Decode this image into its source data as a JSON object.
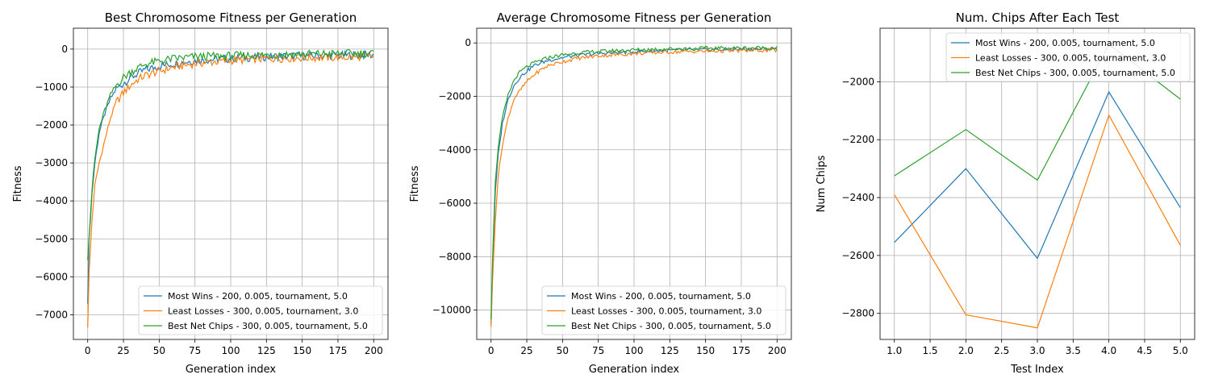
{
  "colors": {
    "blue": "#1f77b4",
    "orange": "#ff7f0e",
    "green": "#2ca02c",
    "grid": "#b0b0b0"
  },
  "chart_data": [
    {
      "type": "line",
      "title": "Best Chromosome Fitness per Generation",
      "xlabel": "Generation index",
      "ylabel": "Fitness",
      "xlim": [
        -10,
        210
      ],
      "ylim": [
        -7650,
        550
      ],
      "xticks": [
        0,
        25,
        50,
        75,
        100,
        125,
        150,
        175,
        200
      ],
      "yticks": [
        0,
        -1000,
        -2000,
        -3000,
        -4000,
        -5000,
        -6000,
        -7000
      ],
      "grid": true,
      "legend_position": "lower-right",
      "series": [
        {
          "name": "Most Wins - 200, 0.005, tournament, 5.0",
          "color": "#1f77b4",
          "points": [
            [
              0,
              -6650
            ],
            [
              1,
              -5000
            ],
            [
              2,
              -4400
            ],
            [
              3,
              -3800
            ],
            [
              5,
              -3000
            ],
            [
              8,
              -2200
            ],
            [
              12,
              -1700
            ],
            [
              16,
              -1300
            ],
            [
              20,
              -1050
            ],
            [
              25,
              -900
            ],
            [
              30,
              -750
            ],
            [
              35,
              -650
            ],
            [
              40,
              -550
            ],
            [
              50,
              -450
            ],
            [
              60,
              -380
            ],
            [
              75,
              -300
            ],
            [
              100,
              -250
            ],
            [
              125,
              -200
            ],
            [
              150,
              -180
            ],
            [
              175,
              -170
            ],
            [
              200,
              -150
            ]
          ]
        },
        {
          "name": "Least Losses - 300, 0.005, tournament, 3.0",
          "color": "#ff7f0e",
          "points": [
            [
              0,
              -7300
            ],
            [
              1,
              -5900
            ],
            [
              2,
              -5200
            ],
            [
              3,
              -4500
            ],
            [
              5,
              -3600
            ],
            [
              8,
              -3000
            ],
            [
              12,
              -2400
            ],
            [
              16,
              -1800
            ],
            [
              20,
              -1400
            ],
            [
              25,
              -1150
            ],
            [
              30,
              -950
            ],
            [
              35,
              -800
            ],
            [
              40,
              -700
            ],
            [
              50,
              -580
            ],
            [
              60,
              -480
            ],
            [
              75,
              -380
            ],
            [
              100,
              -300
            ],
            [
              125,
              -250
            ],
            [
              150,
              -230
            ],
            [
              175,
              -220
            ],
            [
              200,
              -200
            ]
          ]
        },
        {
          "name": "Best Net Chips - 300, 0.005, tournament, 5.0",
          "color": "#2ca02c",
          "points": [
            [
              0,
              -5500
            ],
            [
              1,
              -4900
            ],
            [
              2,
              -4300
            ],
            [
              3,
              -3700
            ],
            [
              5,
              -2900
            ],
            [
              8,
              -2100
            ],
            [
              12,
              -1600
            ],
            [
              16,
              -1200
            ],
            [
              20,
              -950
            ],
            [
              25,
              -750
            ],
            [
              30,
              -600
            ],
            [
              35,
              -500
            ],
            [
              40,
              -400
            ],
            [
              50,
              -320
            ],
            [
              60,
              -250
            ],
            [
              75,
              -200
            ],
            [
              100,
              -180
            ],
            [
              125,
              -150
            ],
            [
              150,
              -130
            ],
            [
              175,
              -120
            ],
            [
              200,
              -110
            ]
          ]
        }
      ]
    },
    {
      "type": "line",
      "title": "Average Chromosome Fitness per Generation",
      "xlabel": "Generation index",
      "ylabel": "Fitness",
      "xlim": [
        -10,
        210
      ],
      "ylim": [
        -11100,
        550
      ],
      "xticks": [
        0,
        25,
        50,
        75,
        100,
        125,
        150,
        175,
        200
      ],
      "yticks": [
        0,
        -2000,
        -4000,
        -6000,
        -8000,
        -10000
      ],
      "grid": true,
      "legend_position": "lower-right",
      "series": [
        {
          "name": "Most Wins - 200, 0.005, tournament, 5.0",
          "color": "#1f77b4",
          "points": [
            [
              0,
              -10500
            ],
            [
              1,
              -8500
            ],
            [
              2,
              -7000
            ],
            [
              3,
              -5600
            ],
            [
              5,
              -4200
            ],
            [
              8,
              -3000
            ],
            [
              12,
              -2100
            ],
            [
              16,
              -1600
            ],
            [
              20,
              -1300
            ],
            [
              25,
              -1050
            ],
            [
              30,
              -850
            ],
            [
              35,
              -750
            ],
            [
              40,
              -650
            ],
            [
              50,
              -550
            ],
            [
              60,
              -470
            ],
            [
              75,
              -400
            ],
            [
              100,
              -330
            ],
            [
              125,
              -280
            ],
            [
              150,
              -260
            ],
            [
              175,
              -240
            ],
            [
              200,
              -220
            ]
          ]
        },
        {
          "name": "Least Losses - 300, 0.005, tournament, 3.0",
          "color": "#ff7f0e",
          "points": [
            [
              0,
              -10600
            ],
            [
              1,
              -9000
            ],
            [
              2,
              -7800
            ],
            [
              3,
              -6600
            ],
            [
              5,
              -5000
            ],
            [
              8,
              -3800
            ],
            [
              12,
              -2800
            ],
            [
              16,
              -2100
            ],
            [
              20,
              -1800
            ],
            [
              25,
              -1450
            ],
            [
              30,
              -1200
            ],
            [
              35,
              -1000
            ],
            [
              40,
              -850
            ],
            [
              50,
              -700
            ],
            [
              60,
              -580
            ],
            [
              75,
              -480
            ],
            [
              100,
              -400
            ],
            [
              125,
              -340
            ],
            [
              150,
              -310
            ],
            [
              175,
              -290
            ],
            [
              200,
              -270
            ]
          ]
        },
        {
          "name": "Best Net Chips - 300, 0.005, tournament, 5.0",
          "color": "#2ca02c",
          "points": [
            [
              0,
              -10300
            ],
            [
              1,
              -8200
            ],
            [
              2,
              -6600
            ],
            [
              3,
              -5200
            ],
            [
              5,
              -3900
            ],
            [
              8,
              -2800
            ],
            [
              12,
              -1950
            ],
            [
              16,
              -1400
            ],
            [
              20,
              -1100
            ],
            [
              25,
              -900
            ],
            [
              30,
              -750
            ],
            [
              35,
              -650
            ],
            [
              40,
              -550
            ],
            [
              50,
              -450
            ],
            [
              60,
              -380
            ],
            [
              75,
              -320
            ],
            [
              100,
              -260
            ],
            [
              125,
              -220
            ],
            [
              150,
              -200
            ],
            [
              175,
              -190
            ],
            [
              200,
              -180
            ]
          ]
        }
      ]
    },
    {
      "type": "line",
      "title": "Num. Chips After Each Test",
      "xlabel": "Test Index",
      "ylabel": "Num Chips",
      "xlim": [
        0.8,
        5.2
      ],
      "ylim": [
        -2890,
        -1815
      ],
      "xticks": [
        1.0,
        1.5,
        2.0,
        2.5,
        3.0,
        3.5,
        4.0,
        4.5,
        5.0
      ],
      "yticks": [
        -2000,
        -2200,
        -2400,
        -2600,
        -2800
      ],
      "grid": true,
      "legend_position": "upper-right",
      "series": [
        {
          "name": "Most Wins - 200, 0.005, tournament, 5.0",
          "color": "#1f77b4",
          "points": [
            [
              1,
              -2555
            ],
            [
              2,
              -2300
            ],
            [
              3,
              -2610
            ],
            [
              4,
              -2035
            ],
            [
              5,
              -2435
            ]
          ]
        },
        {
          "name": "Least Losses - 300, 0.005, tournament, 3.0",
          "color": "#ff7f0e",
          "points": [
            [
              1,
              -2390
            ],
            [
              2,
              -2805
            ],
            [
              3,
              -2850
            ],
            [
              4,
              -2115
            ],
            [
              5,
              -2565
            ]
          ]
        },
        {
          "name": "Best Net Chips - 300, 0.005, tournament, 5.0",
          "color": "#2ca02c",
          "points": [
            [
              1,
              -2325
            ],
            [
              2,
              -2165
            ],
            [
              3,
              -2340
            ],
            [
              4,
              -1870
            ],
            [
              5,
              -2060
            ]
          ]
        }
      ]
    }
  ]
}
